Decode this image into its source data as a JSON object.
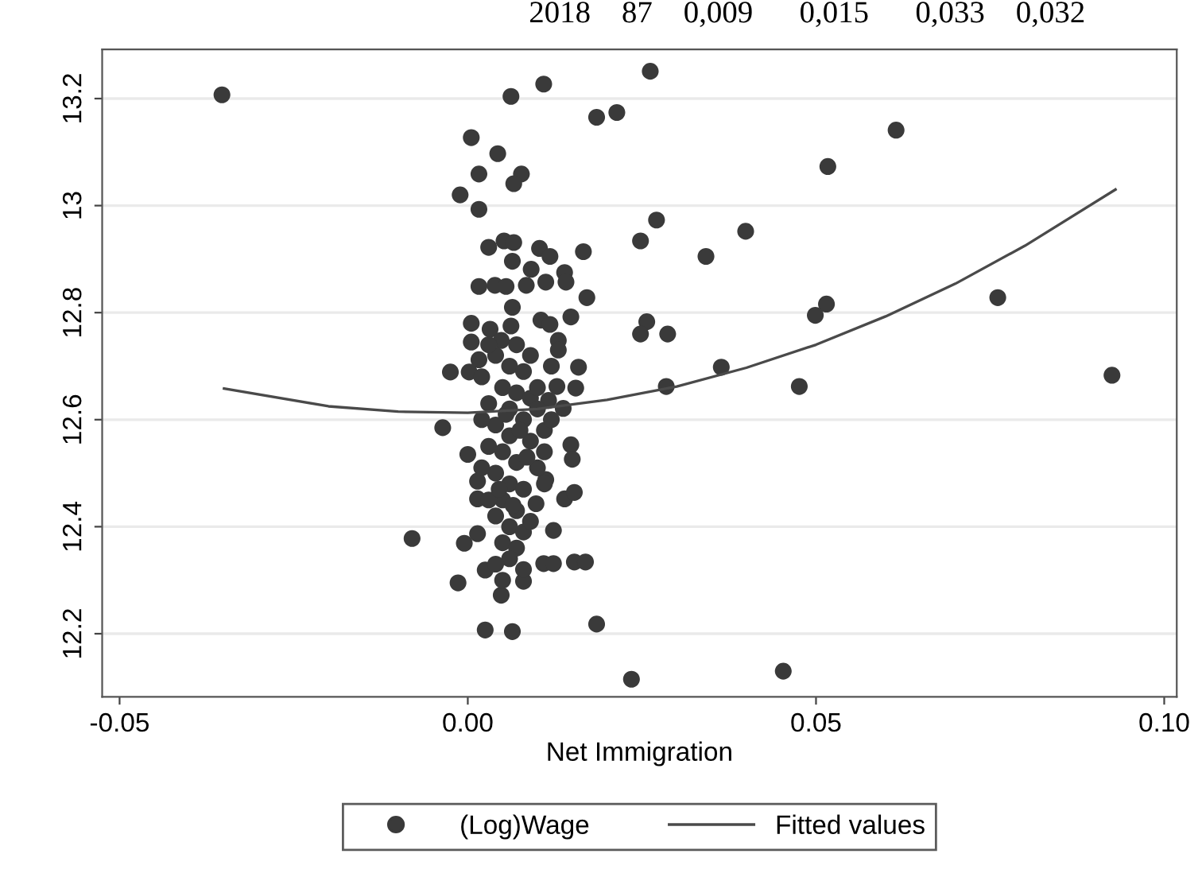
{
  "chart_data": {
    "type": "scatter",
    "xlabel": "Net Immigration",
    "annotations": [
      "2018    87    0,009      0,015      0,033    0,032"
    ],
    "xlim": [
      -0.0525,
      0.1018
    ],
    "ylim": [
      12.082,
      13.292
    ],
    "xticks": [
      {
        "value": -0.05,
        "label": "-0.05"
      },
      {
        "value": 0,
        "label": "0.00"
      },
      {
        "value": 0.05,
        "label": "0.05"
      },
      {
        "value": 0.1,
        "label": "0.10"
      }
    ],
    "yticks": [
      12.2,
      12.4,
      12.6,
      12.8,
      13,
      13.2
    ],
    "grid": "y",
    "legend": "bottom",
    "series": [
      {
        "name": "(Log)Wage",
        "marker": "circle",
        "color": "#3a3a3a",
        "x": [
          -0.0353,
          0.0262,
          0.0109,
          0.0062,
          0.0185,
          0.0214,
          0.0615,
          0.0005,
          0.0043,
          0.0517,
          0.0016,
          0.0077,
          0.0066,
          -0.0011,
          0.0016,
          0.0271,
          0.0399,
          0.0248,
          0.0342,
          0.003,
          0.0052,
          0.0066,
          0.0103,
          0.0118,
          0.0166,
          0.0064,
          0.0091,
          0.0139,
          0.0141,
          0.0016,
          0.0039,
          0.0055,
          0.0084,
          0.0112,
          0.0171,
          0.0064,
          0.0761,
          0.0515,
          0.0499,
          0.0005,
          0.0032,
          0.0062,
          0.0105,
          0.0118,
          0.0148,
          0.0257,
          0.0248,
          0.0287,
          0.0005,
          0.0048,
          0.013,
          0.013,
          0.0016,
          0.0925,
          0.0476,
          0.0285,
          0.0364,
          0.0159,
          -0.0025,
          0.0002,
          0.0128,
          0.0155,
          0.0116,
          0.0137,
          -0.0036,
          0,
          0.0148,
          0.015,
          0.0014,
          0.0014,
          0.0139,
          0.0153,
          0.0098,
          0.0112,
          -0.008,
          -0.0005,
          0.0014,
          0.0123,
          -0.0014,
          0.0025,
          0.0048,
          0.008,
          0.0109,
          0.0123,
          0.0153,
          0.0169,
          0.0025,
          0.0064,
          0.0185,
          0.0235,
          0.0453,
          0.004,
          0.006,
          0.008,
          0.005,
          0.007,
          0.009,
          0.003,
          0.006,
          0.008,
          0.004,
          0.006,
          0.009,
          0.003,
          0.005,
          0.007,
          0.01,
          0.004,
          0.006,
          0.008,
          0.005,
          0.007,
          0.004,
          0.006,
          0.008,
          0.005,
          0.007,
          0.006,
          0.004,
          0.008,
          0.005,
          0.002,
          0.011,
          0.011,
          0.002,
          0.01,
          0.012,
          0.011,
          0.003,
          0.009,
          0.009,
          0.002,
          0.01,
          0.007,
          0.003,
          0.012,
          0.0085,
          0.0045,
          0.0065,
          0.0055,
          0.0075
        ],
        "values": [
          13.207,
          13.251,
          13.227,
          13.204,
          13.165,
          13.174,
          13.141,
          13.127,
          13.097,
          13.073,
          13.059,
          13.059,
          13.041,
          13.02,
          12.993,
          12.973,
          12.952,
          12.934,
          12.905,
          12.922,
          12.934,
          12.931,
          12.92,
          12.905,
          12.914,
          12.896,
          12.881,
          12.875,
          12.857,
          12.849,
          12.851,
          12.849,
          12.851,
          12.857,
          12.828,
          12.81,
          12.828,
          12.816,
          12.795,
          12.78,
          12.769,
          12.775,
          12.786,
          12.778,
          12.792,
          12.783,
          12.76,
          12.76,
          12.745,
          12.748,
          12.748,
          12.73,
          12.712,
          12.683,
          12.662,
          12.662,
          12.698,
          12.698,
          12.689,
          12.689,
          12.662,
          12.659,
          12.636,
          12.621,
          12.585,
          12.535,
          12.553,
          12.526,
          12.485,
          12.452,
          12.452,
          12.464,
          12.443,
          12.488,
          12.378,
          12.369,
          12.387,
          12.393,
          12.295,
          12.319,
          12.272,
          12.298,
          12.331,
          12.331,
          12.334,
          12.334,
          12.207,
          12.204,
          12.218,
          12.115,
          12.13,
          12.72,
          12.7,
          12.69,
          12.66,
          12.65,
          12.64,
          12.63,
          12.62,
          12.6,
          12.59,
          12.57,
          12.56,
          12.55,
          12.54,
          12.52,
          12.51,
          12.5,
          12.48,
          12.47,
          12.45,
          12.43,
          12.42,
          12.4,
          12.39,
          12.37,
          12.36,
          12.34,
          12.33,
          12.32,
          12.3,
          12.6,
          12.58,
          12.54,
          12.51,
          12.62,
          12.7,
          12.48,
          12.45,
          12.41,
          12.72,
          12.68,
          12.66,
          12.74,
          12.74,
          12.6,
          12.53,
          12.47,
          12.44,
          12.61,
          12.58
        ]
      },
      {
        "name": "Fitted values",
        "type": "line",
        "line_style": "solid",
        "color": "#4a4a4a",
        "x": [
          -0.035,
          -0.02,
          -0.01,
          0,
          0.01,
          0.02,
          0.03,
          0.04,
          0.05,
          0.06,
          0.07,
          0.08,
          0.093
        ],
        "values": [
          12.658,
          12.625,
          12.615,
          12.613,
          12.62,
          12.637,
          12.662,
          12.697,
          12.74,
          12.793,
          12.854,
          12.925,
          13.03
        ]
      }
    ]
  }
}
